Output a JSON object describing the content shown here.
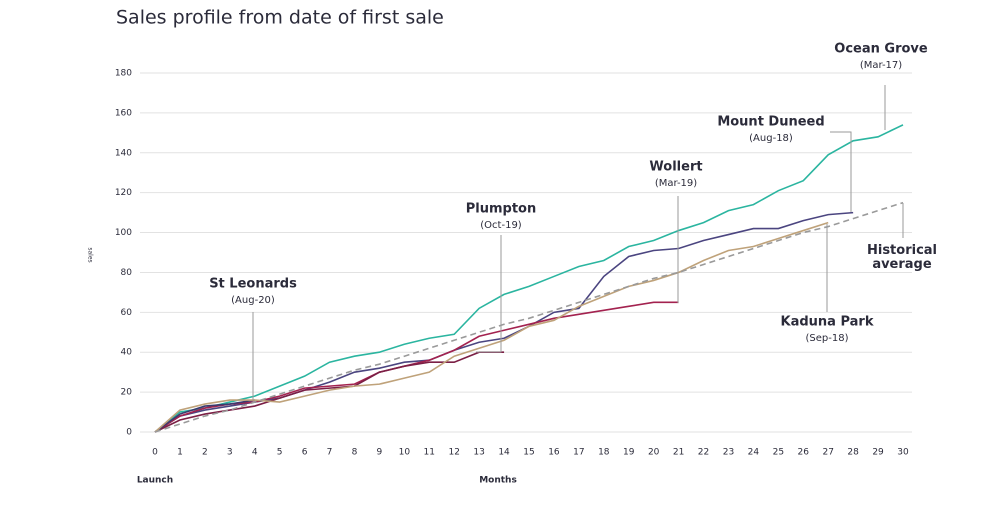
{
  "chart_data": {
    "type": "line",
    "title": "Sales profile from date of first sale",
    "ylabel": "sales",
    "xlabel": "Months",
    "x_start_label": "Launch",
    "x": [
      0,
      1,
      2,
      3,
      4,
      5,
      6,
      7,
      8,
      9,
      10,
      11,
      12,
      13,
      14,
      15,
      16,
      17,
      18,
      19,
      20,
      21,
      22,
      23,
      24,
      25,
      26,
      27,
      28,
      29,
      30
    ],
    "xlim": [
      0,
      30
    ],
    "xticks": [
      0,
      1,
      2,
      3,
      4,
      5,
      6,
      7,
      8,
      9,
      10,
      11,
      12,
      13,
      14,
      15,
      16,
      17,
      18,
      19,
      20,
      21,
      22,
      23,
      24,
      25,
      26,
      27,
      28,
      29,
      30
    ],
    "ylim": [
      0,
      180
    ],
    "yticks": [
      0,
      20,
      40,
      60,
      80,
      100,
      120,
      140,
      160,
      180
    ],
    "grid": true,
    "series": [
      {
        "name": "Ocean Grove",
        "date": "(Mar-17)",
        "color": "#2bb5a0",
        "values": [
          0,
          10,
          12,
          15,
          18,
          23,
          28,
          35,
          38,
          40,
          44,
          47,
          49,
          62,
          69,
          73,
          78,
          83,
          86,
          93,
          96,
          101,
          105,
          111,
          114,
          121,
          126,
          139,
          146,
          148,
          154
        ]
      },
      {
        "name": "Mount Duneed",
        "date": "(Aug-18)",
        "color": "#4b4580",
        "values": [
          0,
          8,
          11,
          13,
          15,
          17,
          21,
          25,
          30,
          32,
          35,
          36,
          41,
          45,
          47,
          53,
          60,
          62,
          78,
          88,
          91,
          92,
          96,
          99,
          102,
          102,
          106,
          109,
          110,
          null,
          null
        ]
      },
      {
        "name": "Wollert",
        "date": "(Mar-19)",
        "color": "#a3224f",
        "values": [
          0,
          8,
          12,
          14,
          15,
          18,
          22,
          23,
          24,
          30,
          33,
          36,
          41,
          48,
          51,
          54,
          57,
          59,
          61,
          63,
          65,
          65,
          null,
          null,
          null,
          null,
          null,
          null,
          null,
          null,
          null
        ]
      },
      {
        "name": "Plumpton",
        "date": "(Oct-19)",
        "color": "#7b1f45",
        "values": [
          0,
          6,
          9,
          11,
          13,
          17,
          21,
          22,
          23,
          30,
          33,
          35,
          35,
          40,
          40,
          null,
          null,
          null,
          null,
          null,
          null,
          null,
          null,
          null,
          null,
          null,
          null,
          null,
          null,
          null,
          null
        ]
      },
      {
        "name": "St Leonards",
        "date": "(Aug-20)",
        "color": "#3c3a6e",
        "values": [
          0,
          9,
          13,
          14,
          16,
          null,
          null,
          null,
          null,
          null,
          null,
          null,
          null,
          null,
          null,
          null,
          null,
          null,
          null,
          null,
          null,
          null,
          null,
          null,
          null,
          null,
          null,
          null,
          null,
          null,
          null
        ]
      },
      {
        "name": "Kaduna Park",
        "date": "(Sep-18)",
        "color": "#bfa27a",
        "values": [
          0,
          11,
          14,
          16,
          16,
          15,
          18,
          21,
          23,
          24,
          27,
          30,
          38,
          42,
          46,
          53,
          56,
          63,
          68,
          73,
          76,
          80,
          86,
          91,
          93,
          97,
          101,
          105,
          null,
          null,
          null
        ]
      },
      {
        "name": "Historical average",
        "color": "#9a9a9a",
        "dashed": true,
        "values": [
          0,
          4,
          8,
          11,
          15,
          19,
          23,
          27,
          31,
          34,
          38,
          42,
          46,
          50,
          54,
          57,
          61,
          65,
          69,
          73,
          77,
          80,
          84,
          88,
          92,
          96,
          100,
          103,
          107,
          111,
          115
        ]
      }
    ]
  }
}
